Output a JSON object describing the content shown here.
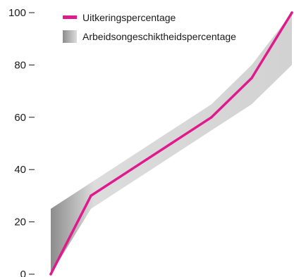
{
  "chart_data": {
    "type": "line",
    "x": [
      0,
      1,
      2,
      3,
      4,
      5,
      6
    ],
    "ylim": [
      0,
      100
    ],
    "y_ticks": [
      "0",
      "20",
      "40",
      "60",
      "80",
      "100"
    ],
    "grid": false,
    "legend_position": "top",
    "series": [
      {
        "name": "Uitkeringspercentage",
        "kind": "line",
        "color": "#e0198c",
        "values": [
          0,
          30,
          40,
          50,
          60,
          75,
          100
        ]
      },
      {
        "name": "Arbeidsongeschiktheidspercentage",
        "kind": "band",
        "color_light": "#dcdcdc",
        "color_dark": "#8c8c8c",
        "lower": [
          0,
          25,
          35,
          45,
          55,
          65,
          80
        ],
        "upper": [
          25,
          35,
          45,
          55,
          65,
          80,
          100
        ]
      }
    ]
  }
}
